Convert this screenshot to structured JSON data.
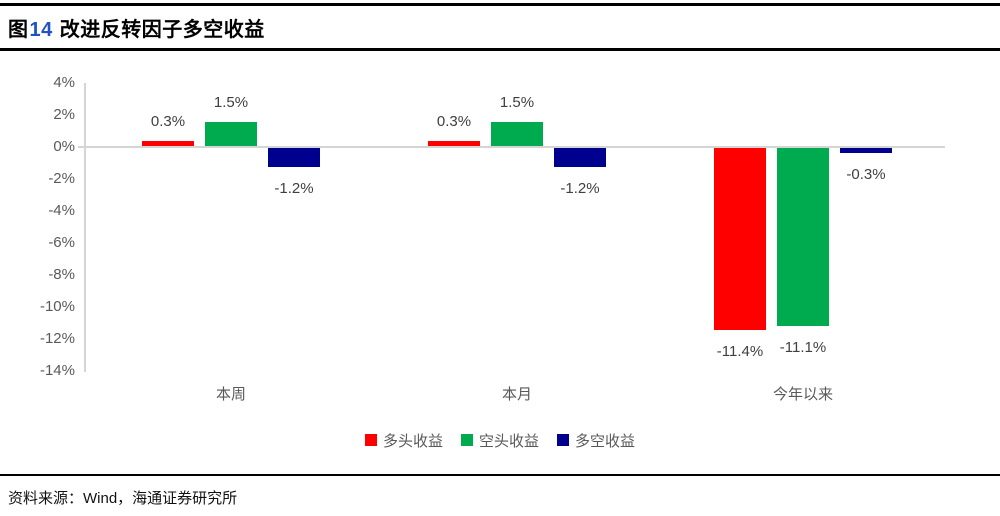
{
  "title": {
    "prefix": "图",
    "number": "14",
    "rest": " 改进反转因子多空收益"
  },
  "chart_data": {
    "type": "bar",
    "title": "图14 改进反转因子多空收益",
    "categories": [
      "本周",
      "本月",
      "今年以来"
    ],
    "series": [
      {
        "name": "多头收益",
        "color": "#FF0000",
        "values": [
          0.3,
          0.3,
          -11.4
        ],
        "labels": [
          "0.3%",
          "0.3%",
          "-11.4%"
        ]
      },
      {
        "name": "空头收益",
        "color": "#00AB50",
        "values": [
          1.5,
          1.5,
          -11.1
        ],
        "labels": [
          "1.5%",
          "1.5%",
          "-11.1%"
        ]
      },
      {
        "name": "多空收益",
        "color": "#00008F",
        "values": [
          -1.2,
          -1.2,
          -0.3
        ],
        "labels": [
          "-1.2%",
          "-1.2%",
          "-0.3%"
        ]
      }
    ],
    "y_ticks": [
      "4%",
      "2%",
      "0%",
      "-2%",
      "-4%",
      "-6%",
      "-8%",
      "-10%",
      "-12%",
      "-14%"
    ],
    "ylim": [
      -14,
      4
    ],
    "xlabel": "",
    "ylabel": "",
    "grid": false,
    "legend_position": "bottom",
    "axis_color": "#D5D5D5",
    "tick_text_color": "#595959",
    "data_label_color": "#3F3F3F"
  },
  "source": {
    "text": "资料来源：Wind，海通证券研究所"
  }
}
